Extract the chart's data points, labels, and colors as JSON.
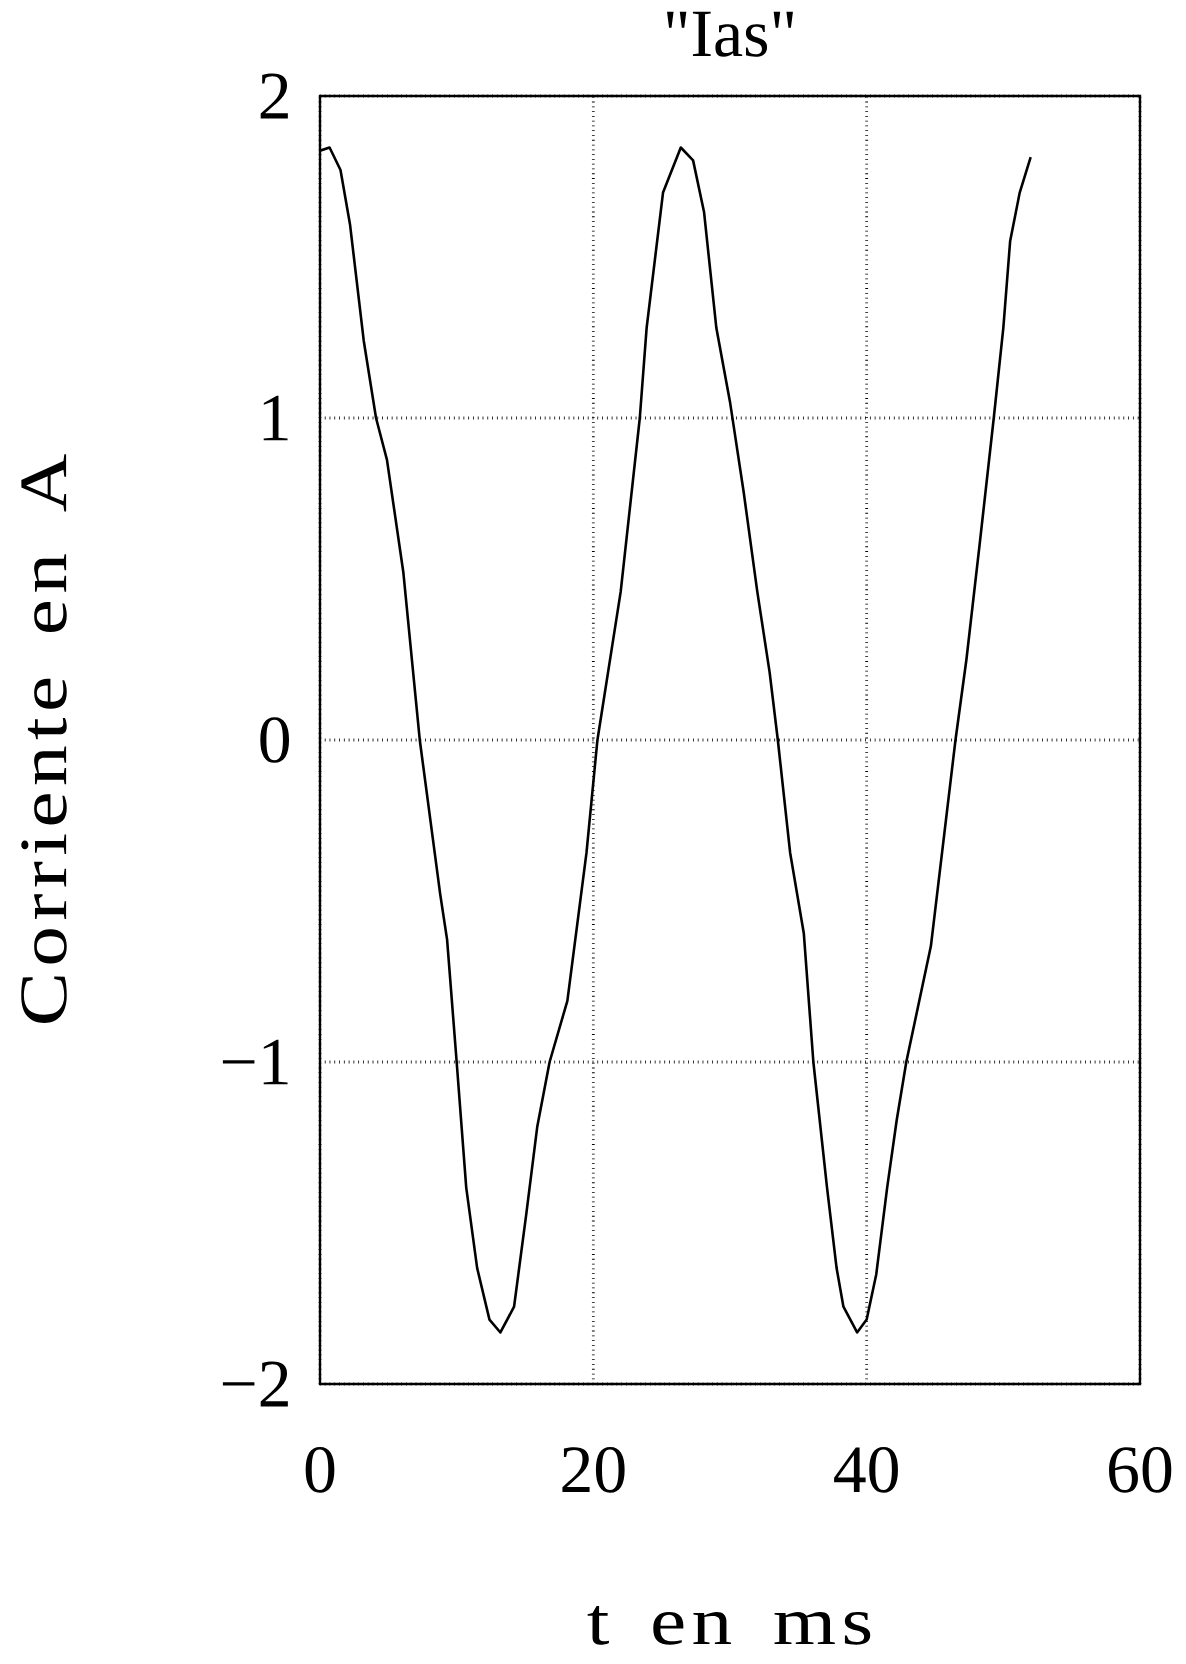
{
  "chart_data": {
    "type": "line",
    "title": "\"Ias\"",
    "xlabel": "t en ms",
    "ylabel": "Corriente en A",
    "x": [
      0,
      0.7,
      1.5,
      2.2,
      3.2,
      4.1,
      4.9,
      6.1,
      7.3,
      8.8,
      9.3,
      10.0,
      10.7,
      11.5,
      12.4,
      13.2,
      14.2,
      15.1,
      15.9,
      16.8,
      18.1,
      19.5,
      20.3,
      22.0,
      23.4,
      23.9,
      25.1,
      26.4,
      27.3,
      28.1,
      29.0,
      30.0,
      31.0,
      32.0,
      32.9,
      33.5,
      34.4,
      35.4,
      36.1,
      37.1,
      37.8,
      38.3,
      39.3,
      40.0,
      40.7,
      41.5,
      42.2,
      42.9,
      44.7,
      46.5,
      47.3,
      48.3,
      49.3,
      50.0,
      50.5,
      51.2,
      52.0
    ],
    "series": [
      {
        "color": "#000000",
        "values": [
          1.83,
          1.84,
          1.77,
          1.6,
          1.24,
          1.0,
          0.87,
          0.52,
          0.0,
          -0.48,
          -0.62,
          -1.0,
          -1.39,
          -1.64,
          -1.8,
          -1.84,
          -1.76,
          -1.47,
          -1.2,
          -1.0,
          -0.81,
          -0.35,
          0.0,
          0.46,
          1.0,
          1.28,
          1.7,
          1.84,
          1.8,
          1.64,
          1.28,
          1.05,
          0.77,
          0.46,
          0.21,
          0.0,
          -0.35,
          -0.6,
          -1.0,
          -1.39,
          -1.64,
          -1.76,
          -1.84,
          -1.8,
          -1.66,
          -1.39,
          -1.18,
          -1.0,
          -0.64,
          0.0,
          0.25,
          0.62,
          1.0,
          1.28,
          1.55,
          1.7,
          1.81
        ]
      }
    ],
    "xlim": [
      0,
      60
    ],
    "ylim": [
      -2,
      2
    ],
    "xticks": [
      0,
      20,
      40,
      60
    ],
    "yticks": [
      {
        "value": -2,
        "label": "−2"
      },
      {
        "value": -1,
        "label": "−1"
      },
      0,
      1,
      2
    ],
    "grid": true,
    "marker": "none",
    "line_style": "solid"
  }
}
